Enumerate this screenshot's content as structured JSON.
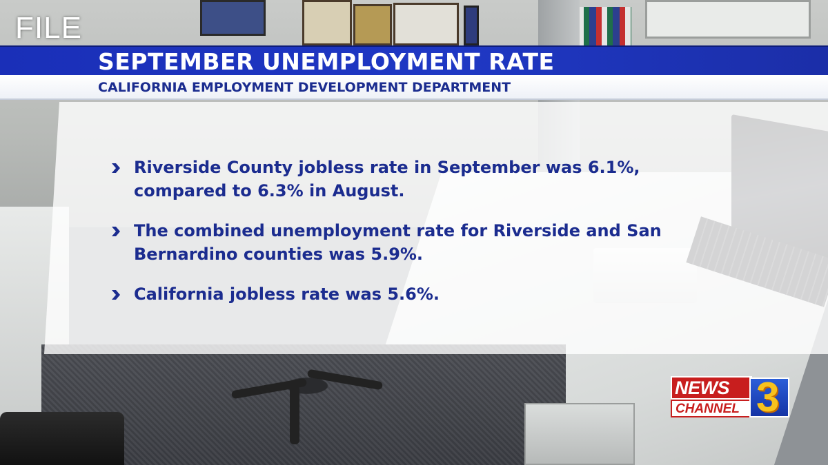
{
  "file_tag": "FILE",
  "headline": {
    "title": "SEPTEMBER UNEMPLOYMENT RATE",
    "subtitle": "CALIFORNIA EMPLOYMENT DEVELOPMENT DEPARTMENT"
  },
  "bullets": [
    {
      "text_line1": "Riverside County jobless rate in September was 6.1%,",
      "text_line2": "compared to 6.3% in August."
    },
    {
      "text_line1": "The combined unemployment rate for Riverside and San",
      "text_line2": "Bernardino counties was 5.9%."
    },
    {
      "text_line1": "California jobless rate was 5.6%.",
      "text_line2": ""
    }
  ],
  "logo": {
    "news": "NEWS",
    "channel": "CHANNEL",
    "number": "3"
  },
  "colors": {
    "title_bar": "#1f38c4",
    "text_navy": "#1b2c8f",
    "logo_red": "#c81e1e",
    "logo_blue": "#1534a5",
    "logo_gold": "#f7c21d"
  },
  "icons": {
    "bullet": "chevron-right-icon"
  }
}
